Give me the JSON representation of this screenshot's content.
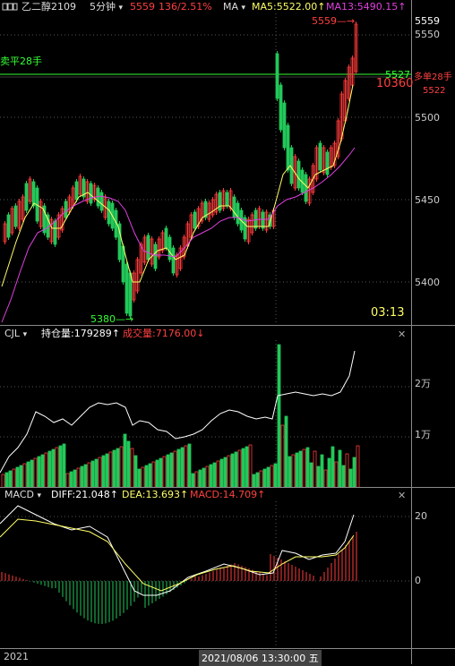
{
  "header": {
    "symbol": "乙二醇2109",
    "period": "5分钟",
    "period_arrow": "▾",
    "price": "5559",
    "change": "136/2.51%",
    "indicator": "MA",
    "indicator_arrow": "▾",
    "ma5": "MA5:5522.00↑",
    "ma13": "MA13:5490.15↑"
  },
  "price_panel": {
    "ylabels": [
      "5559",
      "5550",
      "5500",
      "5450",
      "5400"
    ],
    "high_label": "5559",
    "low_label": "5380",
    "line_5527": "5527",
    "left_order": "卖平28手",
    "right_order": "多单28手",
    "right_price": "5522",
    "volume_text": "10360",
    "time": "03:13"
  },
  "cjl_panel": {
    "name": "CJL",
    "arrow": "▾",
    "oi_label": "持仓量:179289↑",
    "vol_label": "成交量:7176.00↓",
    "ylabels": [
      "2万",
      "1万"
    ]
  },
  "macd_panel": {
    "name": "MACD",
    "arrow": "▾",
    "diff": "DIFF:21.048↑",
    "dea": "DEA:13.693↑",
    "macd": "MACD:14.709↑",
    "ylabels": [
      "20",
      "0"
    ]
  },
  "footer": {
    "year": "2021",
    "cursor_time": "2021/08/06 13:30:00 五"
  },
  "colors": {
    "up": "#ff3b3b",
    "down": "#22c85a",
    "ma5": "#ffff66",
    "ma13": "#e040e0",
    "line_green": "#33ff33",
    "axis": "#8a8a8a"
  },
  "icons": {
    "chart_icon": "window-icon",
    "close": "close-icon"
  }
}
